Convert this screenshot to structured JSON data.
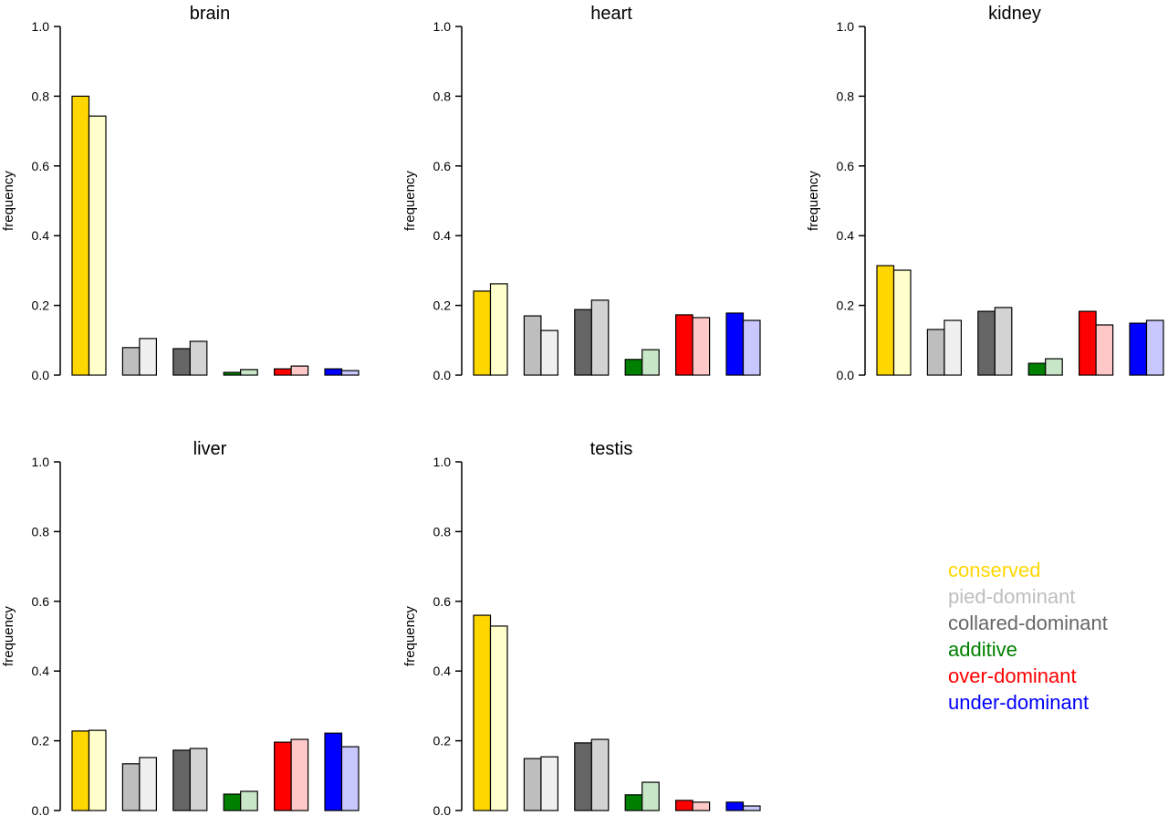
{
  "chart_data": {
    "type": "bar",
    "ylabel": "frequency",
    "ylim": [
      0,
      1.0
    ],
    "yticks": [
      "0.0",
      "0.2",
      "0.4",
      "0.6",
      "0.8",
      "1.0"
    ],
    "categories": [
      "conserved",
      "pied-dominant",
      "collared-dominant",
      "additive",
      "over-dominant",
      "under-dominant"
    ],
    "colors_dark": [
      "#FFD700",
      "#BEBEBE",
      "#666666",
      "#008000",
      "#FF0000",
      "#0000FF"
    ],
    "colors_light": [
      "#FFFFCC",
      "#F0F0F0",
      "#D3D3D3",
      "#C8E6C8",
      "#FFC8C8",
      "#C8C8FF"
    ],
    "legend": {
      "placement": "bottom-right",
      "entries": [
        "conserved",
        "pied-dominant",
        "collared-dominant",
        "additive",
        "over-dominant",
        "under-dominant"
      ]
    },
    "panels": [
      {
        "title": "brain",
        "pairs": [
          [
            0.8,
            0.743
          ],
          [
            0.079,
            0.105
          ],
          [
            0.076,
            0.097
          ],
          [
            0.008,
            0.016
          ],
          [
            0.018,
            0.026
          ],
          [
            0.018,
            0.013
          ]
        ]
      },
      {
        "title": "heart",
        "pairs": [
          [
            0.241,
            0.262
          ],
          [
            0.17,
            0.128
          ],
          [
            0.188,
            0.215
          ],
          [
            0.045,
            0.073
          ],
          [
            0.173,
            0.165
          ],
          [
            0.178,
            0.157
          ]
        ]
      },
      {
        "title": "kidney",
        "pairs": [
          [
            0.314,
            0.301
          ],
          [
            0.131,
            0.157
          ],
          [
            0.183,
            0.194
          ],
          [
            0.034,
            0.047
          ],
          [
            0.183,
            0.144
          ],
          [
            0.149,
            0.157
          ]
        ]
      },
      {
        "title": "liver",
        "pairs": [
          [
            0.228,
            0.23
          ],
          [
            0.134,
            0.152
          ],
          [
            0.173,
            0.178
          ],
          [
            0.047,
            0.055
          ],
          [
            0.196,
            0.204
          ],
          [
            0.222,
            0.183
          ]
        ]
      },
      {
        "title": "testis",
        "pairs": [
          [
            0.56,
            0.529
          ],
          [
            0.149,
            0.154
          ],
          [
            0.194,
            0.204
          ],
          [
            0.045,
            0.081
          ],
          [
            0.029,
            0.024
          ],
          [
            0.024,
            0.013
          ]
        ]
      }
    ]
  }
}
